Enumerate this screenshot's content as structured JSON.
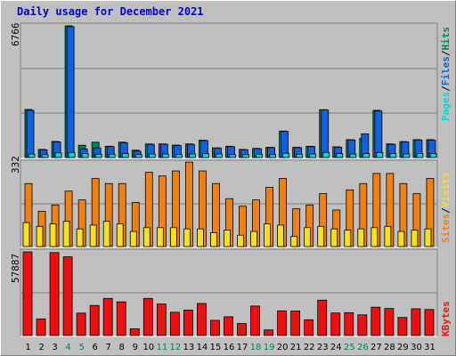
{
  "title": "Daily usage for December 2021",
  "colors": {
    "pages": "#00d8d8",
    "files": "#1060e0",
    "hits": "#008060",
    "visits": "#f8e020",
    "sites": "#f08010",
    "kbytes": "#ee1010",
    "weekend_label": "#008060",
    "title": "#0000cc"
  },
  "chart_data": [
    {
      "type": "bar",
      "panel": "top",
      "ymax_label": "6766",
      "ylim": [
        0,
        6766
      ],
      "legend": {
        "pages": "Pages",
        "sep1": "/",
        "files": "Files",
        "sep2": "/",
        "hits": "Hits"
      },
      "categories": [
        "1",
        "2",
        "3",
        "4",
        "5",
        "6",
        "7",
        "8",
        "9",
        "10",
        "11",
        "12",
        "13",
        "14",
        "15",
        "16",
        "17",
        "18",
        "19",
        "20",
        "21",
        "22",
        "23",
        "24",
        "25",
        "26",
        "27",
        "28",
        "29",
        "30",
        "31"
      ],
      "series": [
        {
          "name": "Hits",
          "values": [
            2468,
            417,
            826,
            6766,
            630,
            787,
            580,
            787,
            378,
            698,
            698,
            640,
            698,
            890,
            500,
            578,
            417,
            470,
            525,
            1360,
            525,
            578,
            2458,
            550,
            918,
            980,
            2425,
            698,
            820,
            918,
            918
          ]
        },
        {
          "name": "Files",
          "values": [
            2420,
            396,
            800,
            6720,
            434,
            496,
            560,
            760,
            330,
            684,
            684,
            620,
            678,
            870,
            480,
            560,
            400,
            450,
            508,
            1340,
            510,
            560,
            2440,
            530,
            900,
            1220,
            2390,
            680,
            800,
            900,
            890
          ]
        },
        {
          "name": "Pages",
          "values": [
            180,
            150,
            240,
            260,
            200,
            170,
            170,
            200,
            150,
            180,
            180,
            150,
            180,
            200,
            180,
            150,
            150,
            170,
            150,
            220,
            170,
            180,
            260,
            200,
            180,
            200,
            250,
            200,
            180,
            200,
            200
          ]
        }
      ]
    },
    {
      "type": "bar",
      "panel": "middle",
      "ymax_label": "332",
      "ylim": [
        0,
        332
      ],
      "legend": {
        "sites": "Sites",
        "sep1": "/",
        "visits": "Visits"
      },
      "categories": [
        "1",
        "2",
        "3",
        "4",
        "5",
        "6",
        "7",
        "8",
        "9",
        "10",
        "11",
        "12",
        "13",
        "14",
        "15",
        "16",
        "17",
        "18",
        "19",
        "20",
        "21",
        "22",
        "23",
        "24",
        "25",
        "26",
        "27",
        "28",
        "29",
        "30",
        "31"
      ],
      "series": [
        {
          "name": "Visits",
          "values": [
            95,
            80,
            90,
            100,
            70,
            85,
            100,
            90,
            60,
            75,
            75,
            75,
            70,
            70,
            55,
            65,
            45,
            60,
            90,
            85,
            40,
            75,
            80,
            70,
            65,
            70,
            75,
            80,
            60,
            65,
            70
          ]
        },
        {
          "name": "Sites",
          "values": [
            250,
            140,
            165,
            220,
            185,
            270,
            250,
            250,
            175,
            295,
            280,
            300,
            335,
            300,
            250,
            190,
            160,
            185,
            235,
            270,
            150,
            165,
            210,
            145,
            225,
            250,
            290,
            290,
            250,
            210,
            270
          ]
        }
      ]
    },
    {
      "type": "bar",
      "panel": "bottom",
      "ymax_label": "57887",
      "ylim": [
        0,
        57887
      ],
      "legend": {
        "kbytes": "KBytes"
      },
      "categories": [
        "1",
        "2",
        "3",
        "4",
        "5",
        "6",
        "7",
        "8",
        "9",
        "10",
        "11",
        "12",
        "13",
        "14",
        "15",
        "16",
        "17",
        "18",
        "19",
        "20",
        "21",
        "22",
        "23",
        "24",
        "25",
        "26",
        "27",
        "28",
        "29",
        "30",
        "31"
      ],
      "series": [
        {
          "name": "KBytes",
          "values": [
            57887,
            11500,
            57400,
            54500,
            15500,
            20800,
            25700,
            23300,
            4700,
            25700,
            21800,
            16100,
            17600,
            22200,
            10500,
            13000,
            8300,
            20400,
            3900,
            17100,
            17000,
            10900,
            24500,
            15600,
            15800,
            14300,
            19600,
            18700,
            12500,
            18500,
            18000
          ]
        }
      ]
    }
  ],
  "weekend_days": [
    "4",
    "5",
    "11",
    "12",
    "18",
    "19",
    "25",
    "26"
  ]
}
